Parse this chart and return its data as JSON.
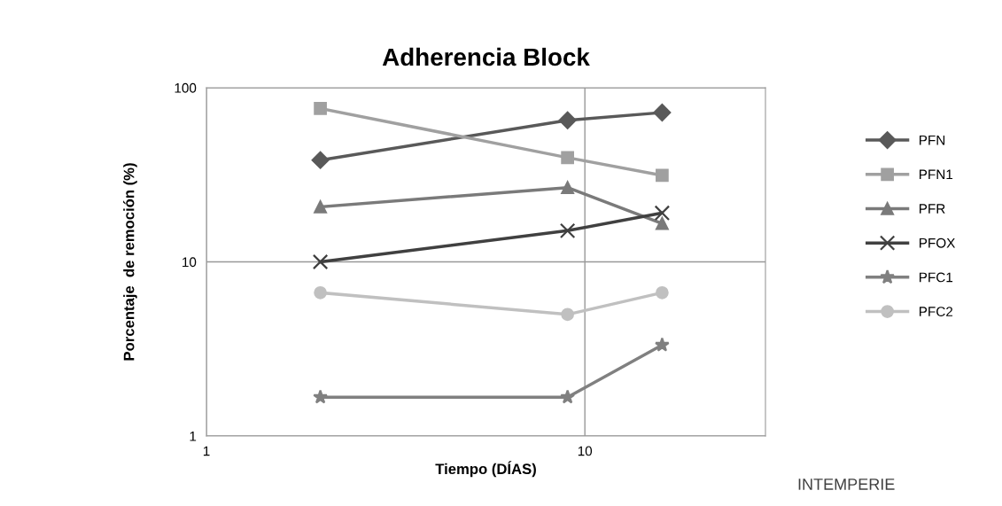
{
  "chart_data": {
    "type": "line",
    "title": "Adherencia Block",
    "xlabel": "Tiempo (DÍAS)",
    "ylabel": "Porcentaje  de remoción (%)",
    "x": [
      2,
      9,
      16
    ],
    "log": "xy",
    "xlim": [
      1,
      30
    ],
    "xticks": [
      1,
      10
    ],
    "ylim": [
      1,
      100
    ],
    "yticks": [
      1,
      10,
      100
    ],
    "grid": true,
    "legend": "right",
    "series": [
      {
        "name": "PFN",
        "color": "#595959",
        "marker": "diamond",
        "values": [
          38.4,
          65,
          72
        ]
      },
      {
        "name": "PFN1",
        "color": "#a0a0a0",
        "marker": "square",
        "values": [
          76,
          39.7,
          31.4
        ]
      },
      {
        "name": "PFR",
        "color": "#7a7a7a",
        "marker": "triangle",
        "values": [
          20.7,
          26.7,
          16.6
        ]
      },
      {
        "name": "PFOX",
        "color": "#404040",
        "marker": "cross",
        "values": [
          10,
          15.1,
          19.1
        ]
      },
      {
        "name": "PFC1",
        "color": "#808080",
        "marker": "star",
        "values": [
          1.67,
          1.67,
          3.33
        ]
      },
      {
        "name": "PFC2",
        "color": "#c0c0c0",
        "marker": "circle",
        "values": [
          6.65,
          4.99,
          6.65
        ]
      }
    ],
    "annotations": [
      "INTEMPERIE"
    ]
  }
}
